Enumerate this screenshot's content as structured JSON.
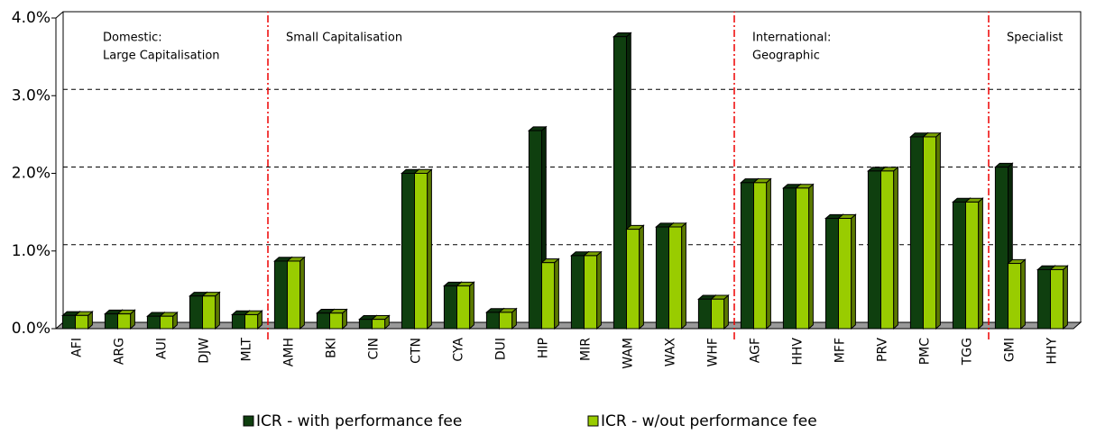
{
  "chart_data": {
    "type": "bar3d",
    "categories": [
      "AFI",
      "ARG",
      "AUI",
      "DJW",
      "MLT",
      "AMH",
      "BKI",
      "CIN",
      "CTN",
      "CYA",
      "DUI",
      "HIP",
      "MIR",
      "WAM",
      "WAX",
      "WHF",
      "AGF",
      "HHV",
      "MFF",
      "PRV",
      "PMC",
      "TGG",
      "GMI",
      "HHY"
    ],
    "series": [
      {
        "name": "ICR - with performance fee",
        "color": "#0f3f0f",
        "values": [
          0.17,
          0.19,
          0.16,
          0.42,
          0.18,
          0.87,
          0.2,
          0.12,
          2.0,
          0.55,
          0.21,
          2.55,
          0.94,
          3.76,
          1.31,
          0.38,
          1.88,
          1.81,
          1.42,
          2.03,
          2.47,
          1.63,
          2.08,
          0.76
        ]
      },
      {
        "name": "ICR - w/out performance fee",
        "color": "#99cc00",
        "values": [
          0.17,
          0.19,
          0.16,
          0.42,
          0.18,
          0.87,
          0.2,
          0.12,
          2.0,
          0.55,
          0.21,
          0.85,
          0.94,
          1.28,
          1.31,
          0.38,
          1.88,
          1.81,
          1.42,
          2.03,
          2.47,
          1.63,
          0.84,
          0.76
        ]
      }
    ],
    "ylim": [
      0,
      4
    ],
    "yticks": [
      {
        "value": 0,
        "label": "0.0%"
      },
      {
        "value": 1,
        "label": "1.0%"
      },
      {
        "value": 2,
        "label": "2.0%"
      },
      {
        "value": 3,
        "label": "3.0%"
      },
      {
        "value": 4,
        "label": "4.0%"
      }
    ],
    "grid": true,
    "annotations": [
      [
        "Domestic:",
        "Large Capitalisation"
      ],
      [
        "Small Capitalisation"
      ],
      [
        "International:",
        "Geographic"
      ],
      [
        "Specialist"
      ]
    ],
    "legend": "bottom"
  }
}
